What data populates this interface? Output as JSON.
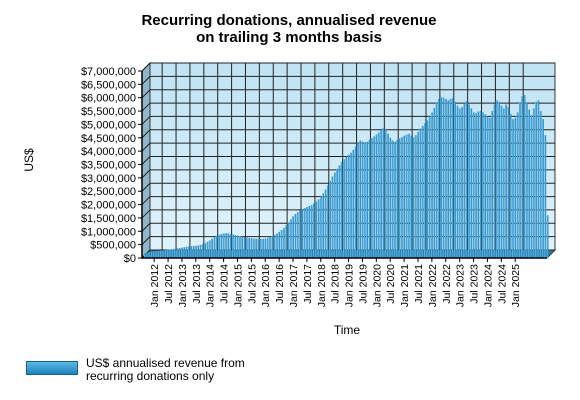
{
  "chart_data": {
    "type": "bar",
    "title": "Recurring donations, annualised revenue\non trailing 3 months basis",
    "ylabel": "US$",
    "xlabel": "Time",
    "ylim": [
      0,
      7000000
    ],
    "y_ticks": [
      0,
      500000,
      1000000,
      1500000,
      2000000,
      2500000,
      3000000,
      3500000,
      4000000,
      4500000,
      5000000,
      5500000,
      6000000,
      6500000,
      7000000
    ],
    "y_tick_labels": [
      "$0",
      "$500,000",
      "$1,000,000",
      "$1,500,000",
      "$2,000,000",
      "$2,500,000",
      "$3,000,000",
      "$3,500,000",
      "$4,000,000",
      "$4,500,000",
      "$5,000,000",
      "$5,500,000",
      "$6,000,000",
      "$6,500,000",
      "$7,000,000"
    ],
    "x_start": "Sep 2011",
    "x_tick_labels": [
      "Jan 2012",
      "Jul 2012",
      "Jan 2013",
      "Jul 2013",
      "Jan 2014",
      "Jul 2014",
      "Jan 2015",
      "Jul 2015",
      "Jan 2016",
      "Jul 2016",
      "Jan 2017",
      "Jul 2017",
      "Jan 2018",
      "Jul 2018",
      "Jan 2019",
      "Jul 2019",
      "Jan 2020",
      "Jul 2020",
      "Jan 2021",
      "Jul 2021",
      "Jan 2022",
      "Jul 2022",
      "Jan 2023",
      "Jul 2023",
      "Jan 2024",
      "Jul 2024",
      "Jan 2025"
    ],
    "grid": true,
    "legend": "bottom-left",
    "series": [
      {
        "name": "US$ annualised revenue from recurring donations only",
        "color": "#2b95d0",
        "values": [
          190000,
          200000,
          215000,
          230000,
          240000,
          250000,
          265000,
          280000,
          290000,
          300000,
          310000,
          320000,
          330000,
          345000,
          360000,
          375000,
          390000,
          405000,
          420000,
          430000,
          440000,
          450000,
          460000,
          470000,
          490000,
          520000,
          560000,
          610000,
          660000,
          720000,
          780000,
          830000,
          870000,
          900000,
          920000,
          930000,
          920000,
          900000,
          880000,
          860000,
          840000,
          820000,
          800000,
          780000,
          765000,
          750000,
          740000,
          730000,
          725000,
          720000,
          718000,
          720000,
          730000,
          750000,
          780000,
          820000,
          870000,
          920000,
          980000,
          1050000,
          1130000,
          1220000,
          1330000,
          1450000,
          1560000,
          1650000,
          1720000,
          1780000,
          1830000,
          1870000,
          1910000,
          1950000,
          1990000,
          2050000,
          2120000,
          2200000,
          2300000,
          2420000,
          2560000,
          2720000,
          2880000,
          3050000,
          3200000,
          3340000,
          3470000,
          3590000,
          3700000,
          3790000,
          3870000,
          3940000,
          4050000,
          4170000,
          4300000,
          4400000,
          4360000,
          4310000,
          4350000,
          4420000,
          4480000,
          4550000,
          4620000,
          4700000,
          4790000,
          4860000,
          4800000,
          4650000,
          4500000,
          4400000,
          4350000,
          4420000,
          4480000,
          4530000,
          4580000,
          4620000,
          4650000,
          4580000,
          4520000,
          4600000,
          4720000,
          4850000,
          4950000,
          5050000,
          5150000,
          5300000,
          5450000,
          5620000,
          5800000,
          5950000,
          6020000,
          6000000,
          5950000,
          5900000,
          5950000,
          6000000,
          5850000,
          5700000,
          5600000,
          5650000,
          5780000,
          5880000,
          5750000,
          5600000,
          5450000,
          5420000,
          5480000,
          5500000,
          5450000,
          5380000,
          5300000,
          5250000,
          5500000,
          5750000,
          5900000,
          5850000,
          5700000,
          5600000,
          5750000,
          5650000,
          5400000,
          5200000,
          5250000,
          5450000,
          5800000,
          6050000,
          6100000,
          5800000,
          5550000,
          5350000,
          5600000,
          5850000,
          5900000,
          5500000,
          5200000,
          4600000,
          1600000
        ]
      }
    ]
  }
}
